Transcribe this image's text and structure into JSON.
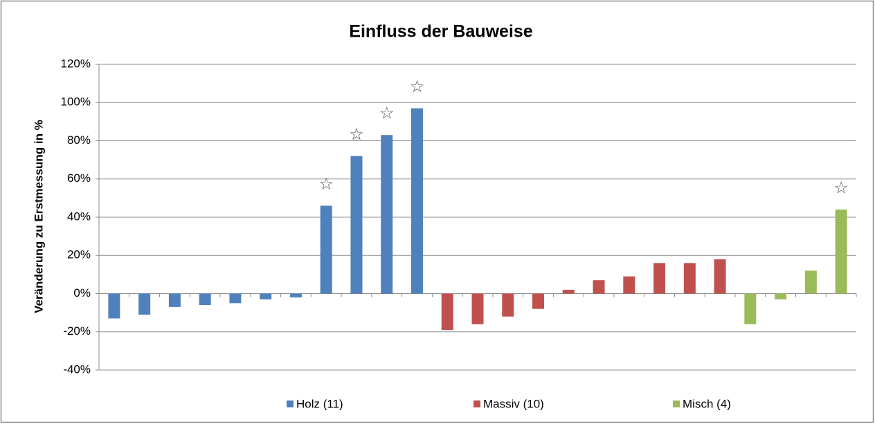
{
  "chart_data": {
    "type": "bar",
    "title": "Einfluss der Bauweise",
    "y_label": "Veränderung zu Erstmessung in %",
    "categories": [
      null,
      null,
      null,
      null,
      null,
      null,
      null,
      null,
      null,
      null,
      null,
      null,
      null,
      null,
      null,
      null,
      null,
      null,
      null,
      null,
      null,
      null,
      null,
      null,
      null
    ],
    "series": [
      {
        "name": "Holz (11)",
        "color": "#4f81bd",
        "values": [
          -13,
          -11,
          -7,
          -6,
          -5,
          -3,
          -2,
          46,
          72,
          83,
          97,
          null,
          null,
          null,
          null,
          null,
          null,
          null,
          null,
          null,
          null,
          null,
          null,
          null,
          null
        ]
      },
      {
        "name": "Massiv (10)",
        "color": "#c0504d",
        "values": [
          null,
          null,
          null,
          null,
          null,
          null,
          null,
          null,
          null,
          null,
          null,
          -19,
          -16,
          -12,
          -8,
          2,
          7,
          9,
          16,
          16,
          18,
          null,
          null,
          null,
          null
        ]
      },
      {
        "name": "Misch (4)",
        "color": "#9bbb59",
        "values": [
          null,
          null,
          null,
          null,
          null,
          null,
          null,
          null,
          null,
          null,
          null,
          null,
          null,
          null,
          null,
          null,
          null,
          null,
          null,
          null,
          null,
          -16,
          -3,
          12,
          44
        ]
      }
    ],
    "annotations": [
      {
        "text": "☆",
        "x": 7
      },
      {
        "text": "☆",
        "x": 8
      },
      {
        "text": "☆",
        "x": 9
      },
      {
        "text": "☆",
        "x": 10
      },
      {
        "text": "☆",
        "x": 24
      }
    ],
    "ylim": [
      -40,
      120
    ],
    "yticks": [
      {
        "value": -40,
        "label": "-40%"
      },
      {
        "value": -20,
        "label": "-20%"
      },
      {
        "value": 0,
        "label": "0%"
      },
      {
        "value": 20,
        "label": "20%"
      },
      {
        "value": 40,
        "label": "40%"
      },
      {
        "value": 60,
        "label": "60%"
      },
      {
        "value": 80,
        "label": "80%"
      },
      {
        "value": 100,
        "label": "100%"
      },
      {
        "value": 120,
        "label": "120%"
      }
    ],
    "grid": true,
    "legend": "bottom"
  }
}
